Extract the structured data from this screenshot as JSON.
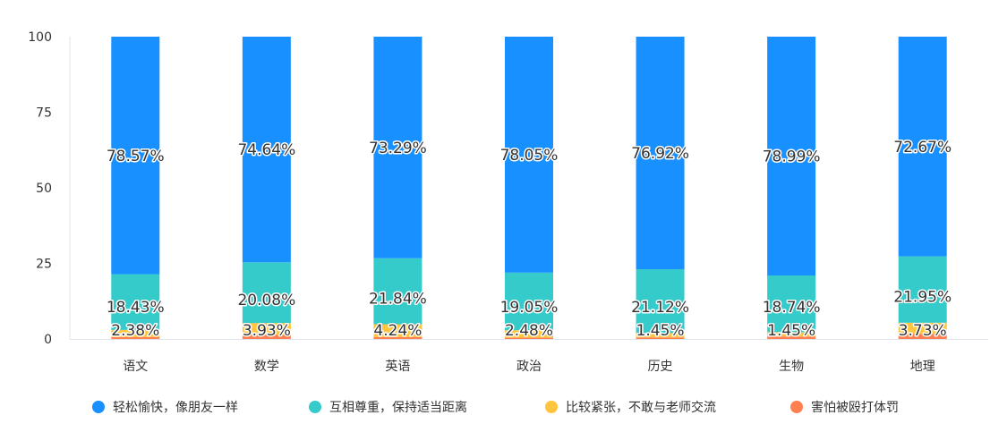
{
  "chart_data": {
    "type": "bar",
    "stacked": true,
    "categories": [
      "语文",
      "数学",
      "英语",
      "政治",
      "历史",
      "生物",
      "地理"
    ],
    "ylim": [
      0,
      100
    ],
    "yticks": [
      0,
      25,
      50,
      75,
      100
    ],
    "grid": false,
    "legend_position": "bottom",
    "series": [
      {
        "name": "害怕被殴打体罚",
        "color": "#ff7f50",
        "values": [
          0.62,
          1.35,
          0.63,
          0.42,
          0.51,
          0.82,
          1.65
        ],
        "labels": [
          "",
          "",
          "",
          "",
          "",
          "",
          ""
        ]
      },
      {
        "name": "比较紧张，不敢与老师交流",
        "color": "#ffc53d",
        "values": [
          2.38,
          3.93,
          4.24,
          2.48,
          1.45,
          1.45,
          3.73
        ],
        "labels": [
          "2.38%",
          "3.93%",
          "4.24%",
          "2.48%",
          "1.45%",
          "1.45%",
          "3.73%"
        ]
      },
      {
        "name": "互相尊重，保持适当距离",
        "color": "#36cbcb",
        "values": [
          18.43,
          20.08,
          21.84,
          19.05,
          21.12,
          18.74,
          21.95
        ],
        "labels": [
          "18.43%",
          "20.08%",
          "21.84%",
          "19.05%",
          "21.12%",
          "18.74%",
          "21.95%"
        ]
      },
      {
        "name": "轻松愉快，像朋友一样",
        "color": "#1890ff",
        "values": [
          78.57,
          74.64,
          73.29,
          78.05,
          76.92,
          78.99,
          72.67
        ],
        "labels": [
          "78.57%",
          "74.64%",
          "73.29%",
          "78.05%",
          "76.92%",
          "78.99%",
          "72.67%"
        ]
      }
    ],
    "legend_order": [
      3,
      2,
      1,
      0
    ]
  }
}
